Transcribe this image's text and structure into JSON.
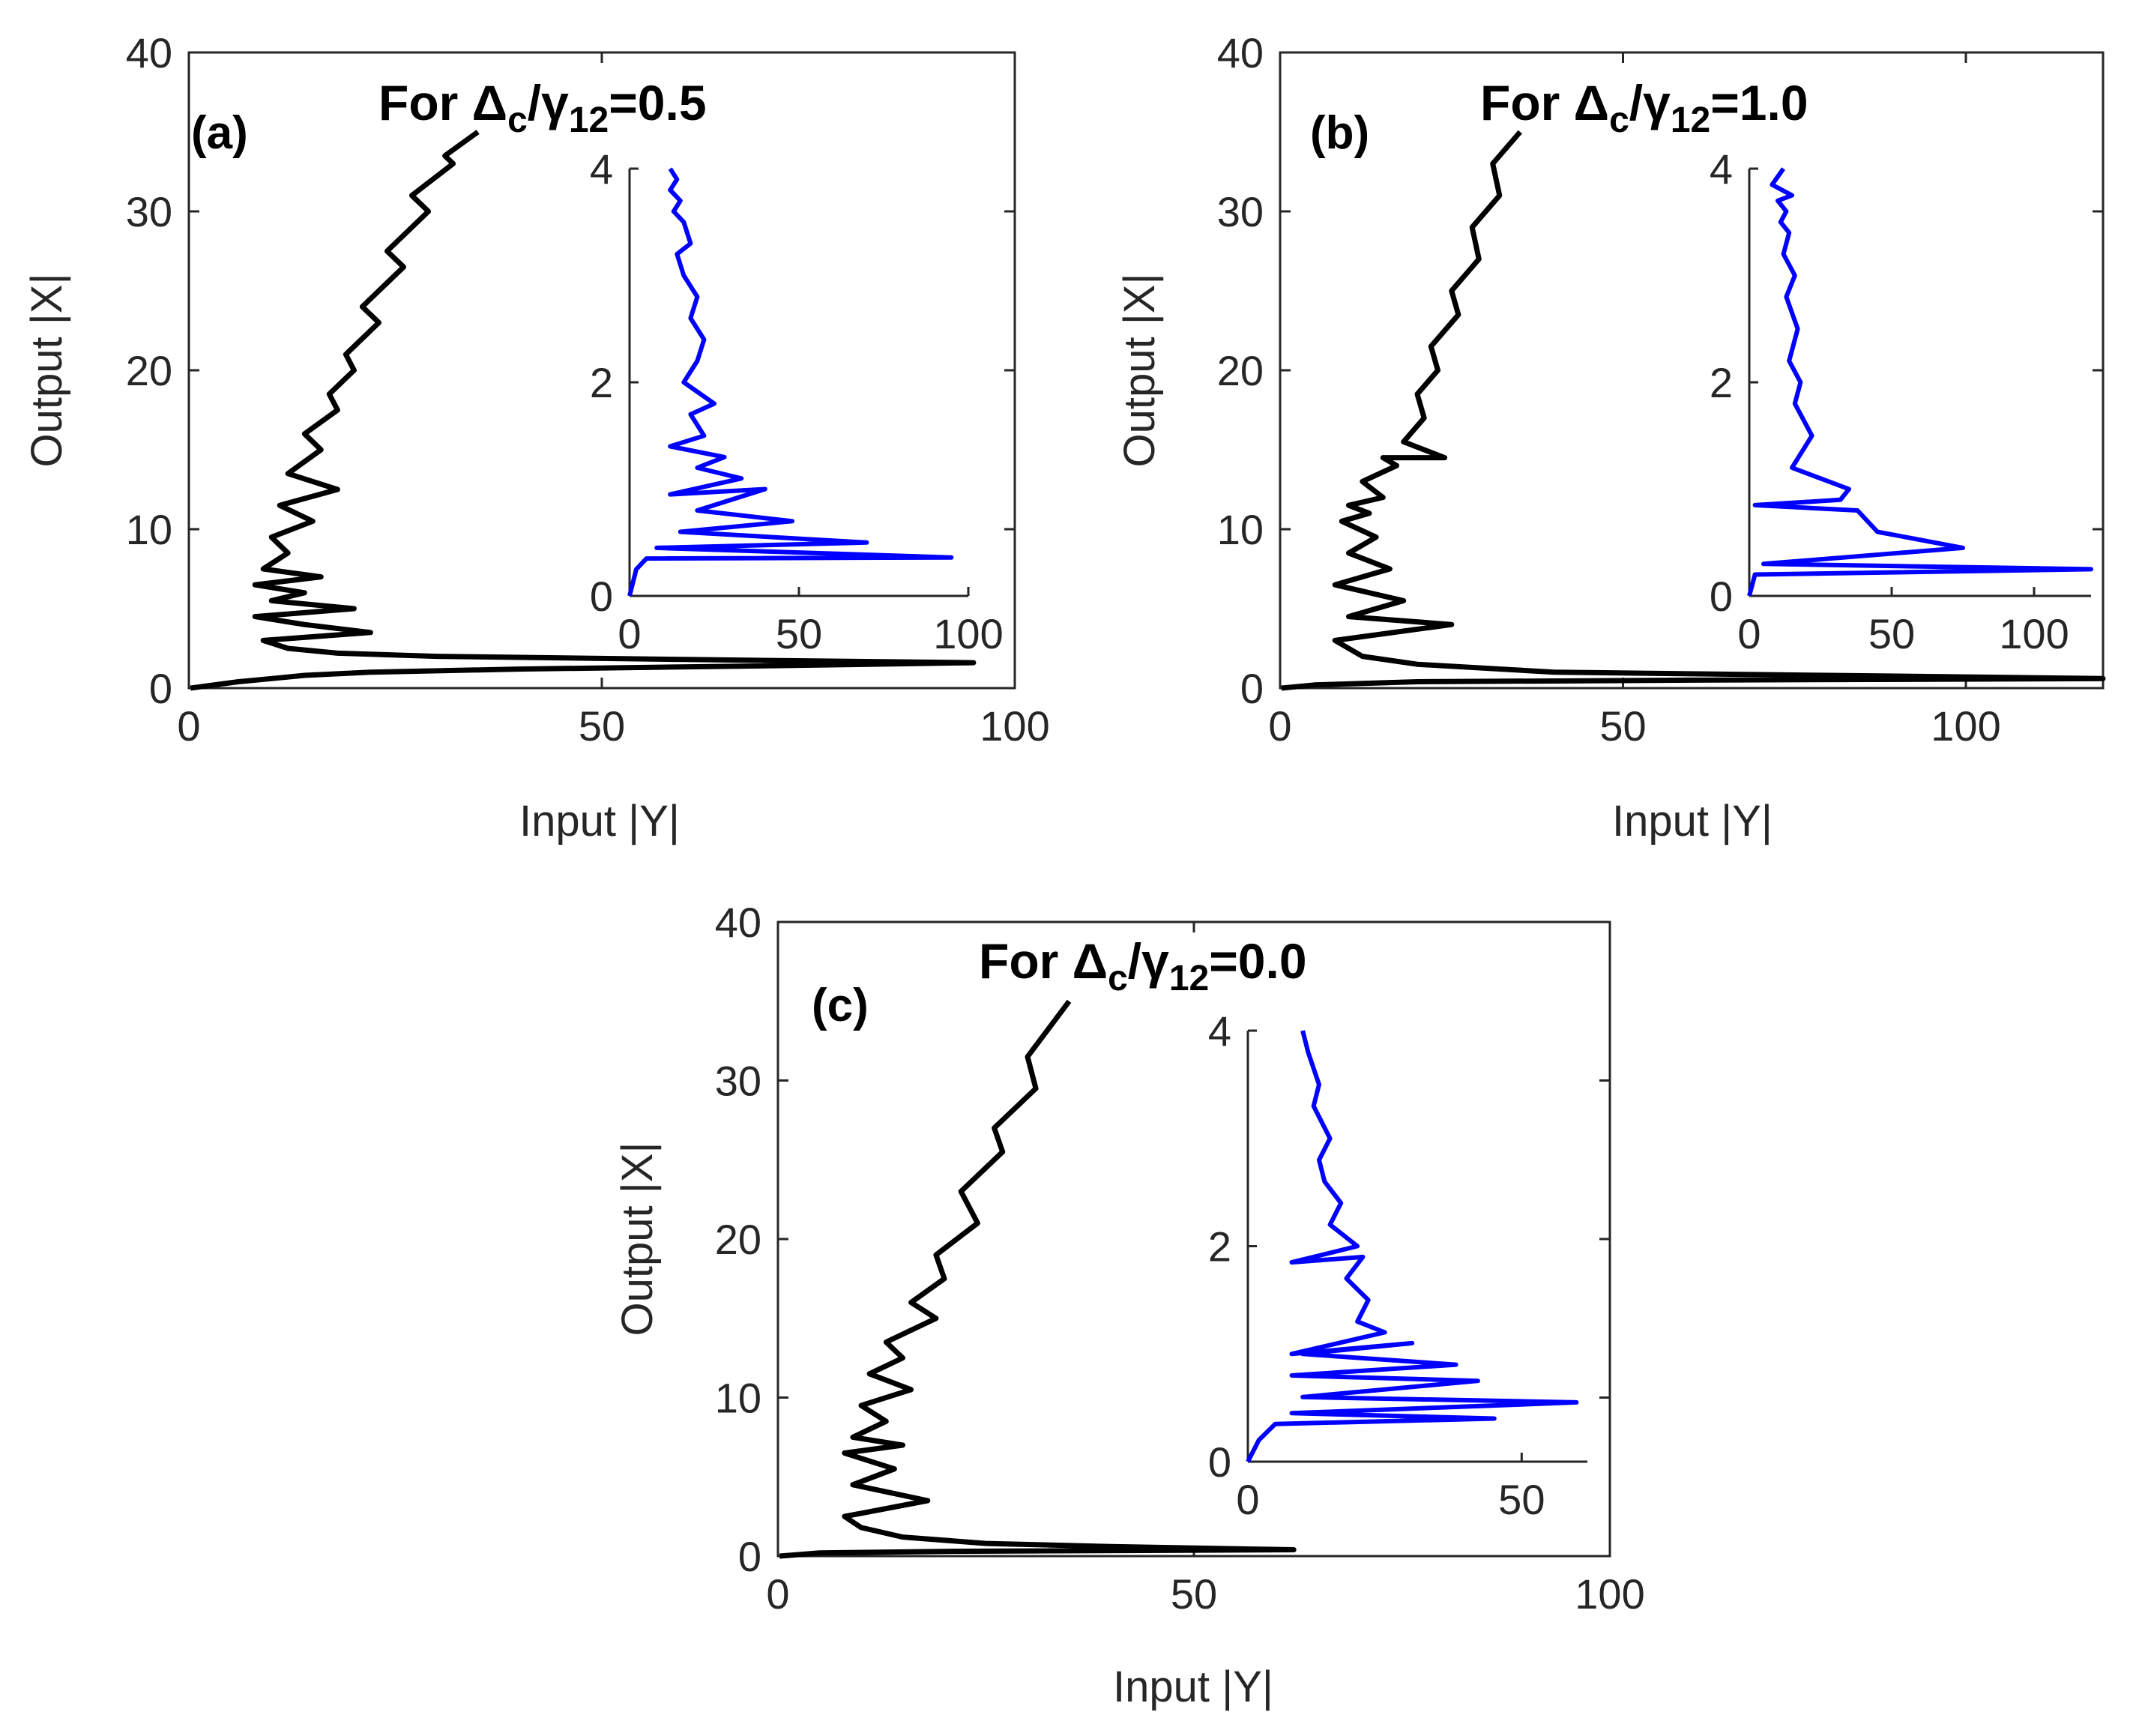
{
  "chart_data": [
    {
      "type": "line",
      "panel_tag": "(a)",
      "title": {
        "prefix": "For ",
        "delta": "Δ",
        "delta_sub": "c",
        "slash": "/",
        "gamma": "γ",
        "gamma_sub": "12",
        "suffix": "=0.5"
      },
      "xlabel": "Input |Y|",
      "ylabel": "Output |X|",
      "xlim": [
        0,
        100
      ],
      "ylim": [
        0,
        40
      ],
      "xticks": [
        0,
        50,
        100
      ],
      "yticks": [
        0,
        10,
        20,
        30,
        40
      ],
      "series_color": "#000000",
      "series": [
        {
          "name": "main",
          "x": [
            0.2,
            3,
            6,
            10,
            14,
            22,
            40,
            70,
            95,
            60,
            30,
            18,
            12,
            9,
            22,
            14,
            8,
            20,
            10,
            14,
            8,
            16,
            9,
            12,
            10,
            15,
            11,
            18,
            12,
            16,
            14,
            18,
            17,
            20,
            19,
            23,
            21,
            26,
            24,
            29,
            27,
            32,
            31,
            35
          ],
          "y": [
            0,
            0.2,
            0.4,
            0.6,
            0.8,
            1.0,
            1.2,
            1.4,
            1.6,
            1.8,
            2.0,
            2.2,
            2.5,
            3.0,
            3.5,
            4.0,
            4.5,
            5.0,
            5.5,
            6.0,
            6.5,
            7.0,
            7.5,
            8.5,
            9.5,
            10.5,
            11.5,
            12.5,
            13.5,
            15.0,
            16.0,
            17.5,
            18.5,
            20.0,
            21.0,
            23.0,
            24.0,
            26.5,
            27.5,
            30.0,
            31.0,
            33.0,
            33.5,
            35.0
          ]
        }
      ],
      "inset": {
        "xlim": [
          0,
          100
        ],
        "ylim": [
          0,
          4
        ],
        "xticks": [
          0,
          50,
          100
        ],
        "yticks": [
          0,
          2,
          4
        ],
        "color": "#0000ff",
        "x": [
          0,
          2,
          5,
          95,
          8,
          70,
          15,
          48,
          20,
          40,
          12,
          33,
          20,
          28,
          12,
          22,
          20,
          18,
          25,
          16,
          20,
          22,
          18,
          20,
          16,
          14,
          18,
          16,
          13,
          15,
          12,
          14,
          12
        ],
        "y": [
          0,
          0.25,
          0.35,
          0.36,
          0.45,
          0.5,
          0.6,
          0.7,
          0.8,
          1.0,
          0.95,
          1.1,
          1.2,
          1.3,
          1.4,
          1.5,
          1.6,
          1.7,
          1.8,
          2.0,
          2.2,
          2.4,
          2.6,
          2.8,
          3.0,
          3.2,
          3.3,
          3.5,
          3.6,
          3.7,
          3.8,
          3.9,
          4.0
        ]
      }
    },
    {
      "type": "line",
      "panel_tag": "(b)",
      "title": {
        "prefix": "For ",
        "delta": "Δ",
        "delta_sub": "c",
        "slash": "/",
        "gamma": "γ",
        "gamma_sub": "12",
        "suffix": "=1.0"
      },
      "xlabel": "Input |Y|",
      "ylabel": "Output |X|",
      "xlim": [
        0,
        120
      ],
      "ylim": [
        0,
        40
      ],
      "xticks": [
        0,
        50,
        100
      ],
      "yticks": [
        0,
        10,
        20,
        30,
        40
      ],
      "series_color": "#000000",
      "series": [
        {
          "name": "main",
          "x": [
            0.2,
            5,
            20,
            60,
            120,
            80,
            40,
            20,
            12,
            8,
            25,
            10,
            18,
            8,
            16,
            10,
            14,
            9,
            13,
            10,
            15,
            12,
            17,
            15,
            24,
            18,
            21,
            20,
            23,
            22,
            26,
            25,
            29,
            28,
            32,
            31,
            35
          ],
          "y": [
            0,
            0.2,
            0.4,
            0.5,
            0.6,
            0.8,
            1.0,
            1.5,
            2.0,
            3.0,
            4.0,
            4.5,
            5.5,
            6.5,
            7.5,
            8.5,
            9.5,
            10.5,
            11.0,
            11.5,
            12.0,
            13.0,
            14.0,
            14.5,
            14.5,
            15.5,
            17.0,
            18.5,
            20.0,
            21.5,
            23.5,
            25.0,
            27.0,
            29.0,
            31.0,
            33.0,
            35.0
          ]
        }
      ],
      "inset": {
        "xlim": [
          0,
          120
        ],
        "ylim": [
          0,
          4
        ],
        "xticks": [
          0,
          50,
          100
        ],
        "yticks": [
          0,
          2,
          4
        ],
        "color": "#0000ff",
        "x": [
          0,
          2,
          120,
          5,
          75,
          45,
          38,
          2,
          32,
          35,
          15,
          22,
          16,
          18,
          14,
          17,
          13,
          16,
          12,
          14,
          11,
          13,
          10,
          15,
          8,
          12
        ],
        "y": [
          0,
          0.2,
          0.25,
          0.3,
          0.45,
          0.6,
          0.8,
          0.85,
          0.9,
          1.0,
          1.2,
          1.5,
          1.8,
          2.0,
          2.2,
          2.5,
          2.8,
          3.0,
          3.2,
          3.4,
          3.5,
          3.6,
          3.7,
          3.75,
          3.85,
          4.0
        ]
      }
    },
    {
      "type": "line",
      "panel_tag": "(c)",
      "title": {
        "prefix": "For ",
        "delta": "Δ",
        "delta_sub": "c",
        "slash": "/",
        "gamma": "γ",
        "gamma_sub": "12",
        "suffix": "=0.0"
      },
      "xlabel": "Input |Y|",
      "ylabel": "Output |X|",
      "xlim": [
        0,
        100
      ],
      "ylim": [
        0,
        40
      ],
      "xticks": [
        0,
        50,
        100
      ],
      "yticks": [
        0,
        10,
        20,
        30,
        40
      ],
      "series_color": "#000000",
      "series": [
        {
          "name": "main",
          "x": [
            0.2,
            5,
            20,
            62,
            40,
            25,
            15,
            10,
            8,
            18,
            9,
            14,
            8,
            15,
            9,
            13,
            10,
            16,
            11,
            15,
            13,
            19,
            16,
            20,
            19,
            24,
            22,
            27,
            26,
            31,
            30,
            35
          ],
          "y": [
            0,
            0.2,
            0.3,
            0.4,
            0.6,
            0.8,
            1.2,
            1.8,
            2.5,
            3.5,
            4.5,
            5.5,
            6.5,
            7.0,
            7.5,
            8.5,
            9.5,
            10.5,
            11.5,
            12.5,
            13.5,
            15.0,
            16.0,
            17.5,
            19.0,
            21.0,
            23.0,
            25.5,
            27.0,
            29.5,
            31.5,
            35.0
          ]
        }
      ],
      "inset": {
        "xlim": [
          0,
          62
        ],
        "ylim": [
          0,
          4
        ],
        "xticks": [
          0,
          50
        ],
        "yticks": [
          0,
          2,
          4
        ],
        "color": "#0000ff",
        "x": [
          0,
          2,
          5,
          45,
          8,
          60,
          10,
          42,
          8,
          38,
          10,
          30,
          8,
          25,
          20,
          22,
          18,
          21,
          8,
          20,
          15,
          17,
          14,
          13,
          15,
          12,
          13,
          11,
          10
        ],
        "y": [
          0,
          0.2,
          0.35,
          0.4,
          0.45,
          0.55,
          0.6,
          0.75,
          0.8,
          0.9,
          1.0,
          1.1,
          1.0,
          1.2,
          1.3,
          1.5,
          1.7,
          1.9,
          1.85,
          2.0,
          2.2,
          2.4,
          2.6,
          2.8,
          3.0,
          3.3,
          3.5,
          3.8,
          4.0
        ]
      }
    }
  ]
}
